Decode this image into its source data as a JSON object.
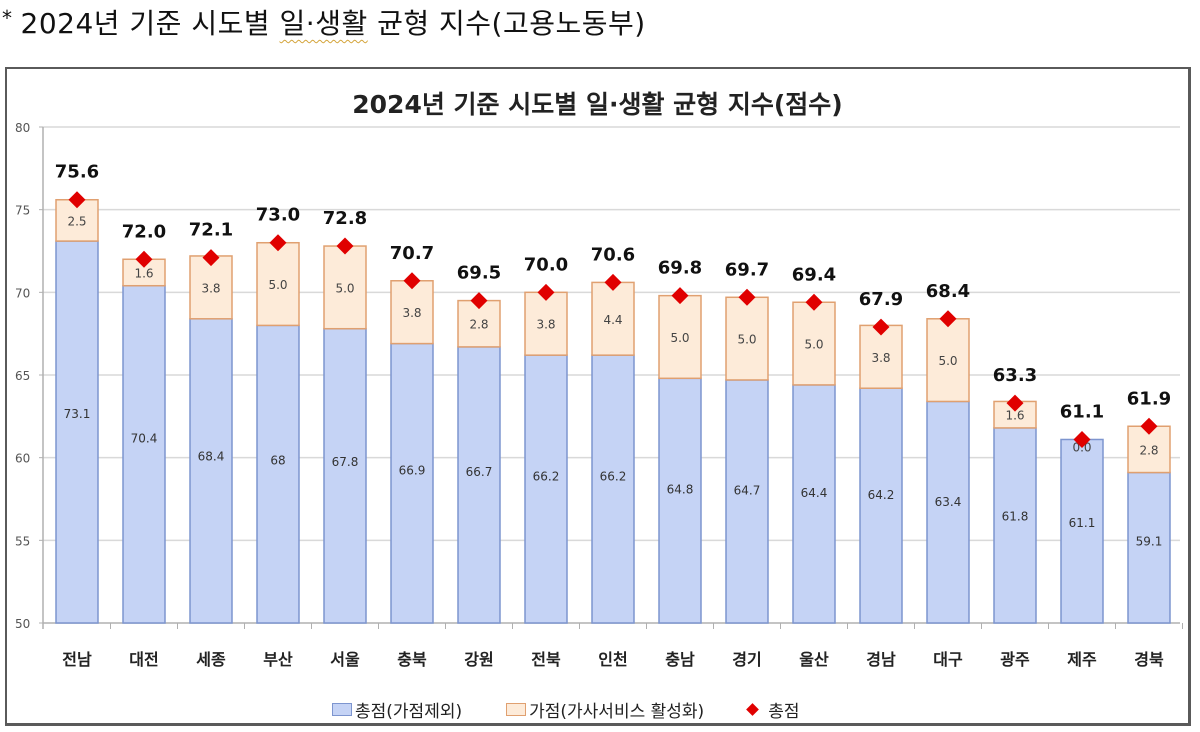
{
  "caption": {
    "bullet": "*",
    "text_before": "2024년 기준 시도별 ",
    "text_underlined": "일·생활",
    "text_after": " 균형 지수(고용노동부)"
  },
  "chart": {
    "title": "2024년 기준 시도별 일·생활 균형 지수(점수)",
    "legend": {
      "base": "총점(가점제외)",
      "bonus": "가점(가사서비스 활성화)",
      "total": "총점"
    }
  },
  "colors": {
    "base_fill": "#c5d3f5",
    "base_stroke": "#7d95cf",
    "bonus_fill": "#fdebd9",
    "bonus_stroke": "#e0a070",
    "total_marker": "#e00000",
    "gridline": "#d9d9d9",
    "axis": "#b0b0b0"
  },
  "chart_data": {
    "type": "bar",
    "stacked": true,
    "title": "2024년 기준 시도별 일·생활 균형 지수(점수)",
    "xlabel": "",
    "ylabel": "",
    "ylim": [
      50,
      80
    ],
    "yticks": [
      50,
      55,
      60,
      65,
      70,
      75,
      80
    ],
    "grid": true,
    "legend_position": "bottom",
    "categories": [
      "전남",
      "대전",
      "세종",
      "부산",
      "서울",
      "충북",
      "강원",
      "전북",
      "인천",
      "충남",
      "경기",
      "울산",
      "경남",
      "대구",
      "광주",
      "제주",
      "경북"
    ],
    "series": [
      {
        "name": "총점(가점제외)",
        "type": "bar",
        "values": [
          73.1,
          70.4,
          68.4,
          68,
          67.8,
          66.9,
          66.7,
          66.2,
          66.2,
          64.8,
          64.7,
          64.4,
          64.2,
          63.4,
          61.8,
          61.1,
          59.1
        ],
        "labels": [
          "73.1",
          "70.4",
          "68.4",
          "68",
          "67.8",
          "66.9",
          "66.7",
          "66.2",
          "66.2",
          "64.8",
          "64.7",
          "64.4",
          "64.2",
          "63.4",
          "61.8",
          "61.1",
          "59.1"
        ]
      },
      {
        "name": "가점(가사서비스 활성화)",
        "type": "bar",
        "values": [
          2.5,
          1.6,
          3.8,
          5.0,
          5.0,
          3.8,
          2.8,
          3.8,
          4.4,
          5.0,
          5.0,
          5.0,
          3.8,
          5.0,
          1.6,
          0.0,
          2.8
        ],
        "labels": [
          "2.5",
          "1.6",
          "3.8",
          "5.0",
          "5.0",
          "3.8",
          "2.8",
          "3.8",
          "4.4",
          "5.0",
          "5.0",
          "5.0",
          "3.8",
          "5.0",
          "1.6",
          "0.0",
          "2.8"
        ]
      },
      {
        "name": "총점",
        "type": "marker",
        "values": [
          75.6,
          72.0,
          72.1,
          73.0,
          72.8,
          70.7,
          69.5,
          70.0,
          70.6,
          69.8,
          69.7,
          69.4,
          67.9,
          68.4,
          63.3,
          61.1,
          61.9
        ],
        "labels": [
          "75.6",
          "72.0",
          "72.1",
          "73.0",
          "72.8",
          "70.7",
          "69.5",
          "70.0",
          "70.6",
          "69.8",
          "69.7",
          "69.4",
          "67.9",
          "68.4",
          "63.3",
          "61.1",
          "61.9"
        ]
      }
    ]
  }
}
